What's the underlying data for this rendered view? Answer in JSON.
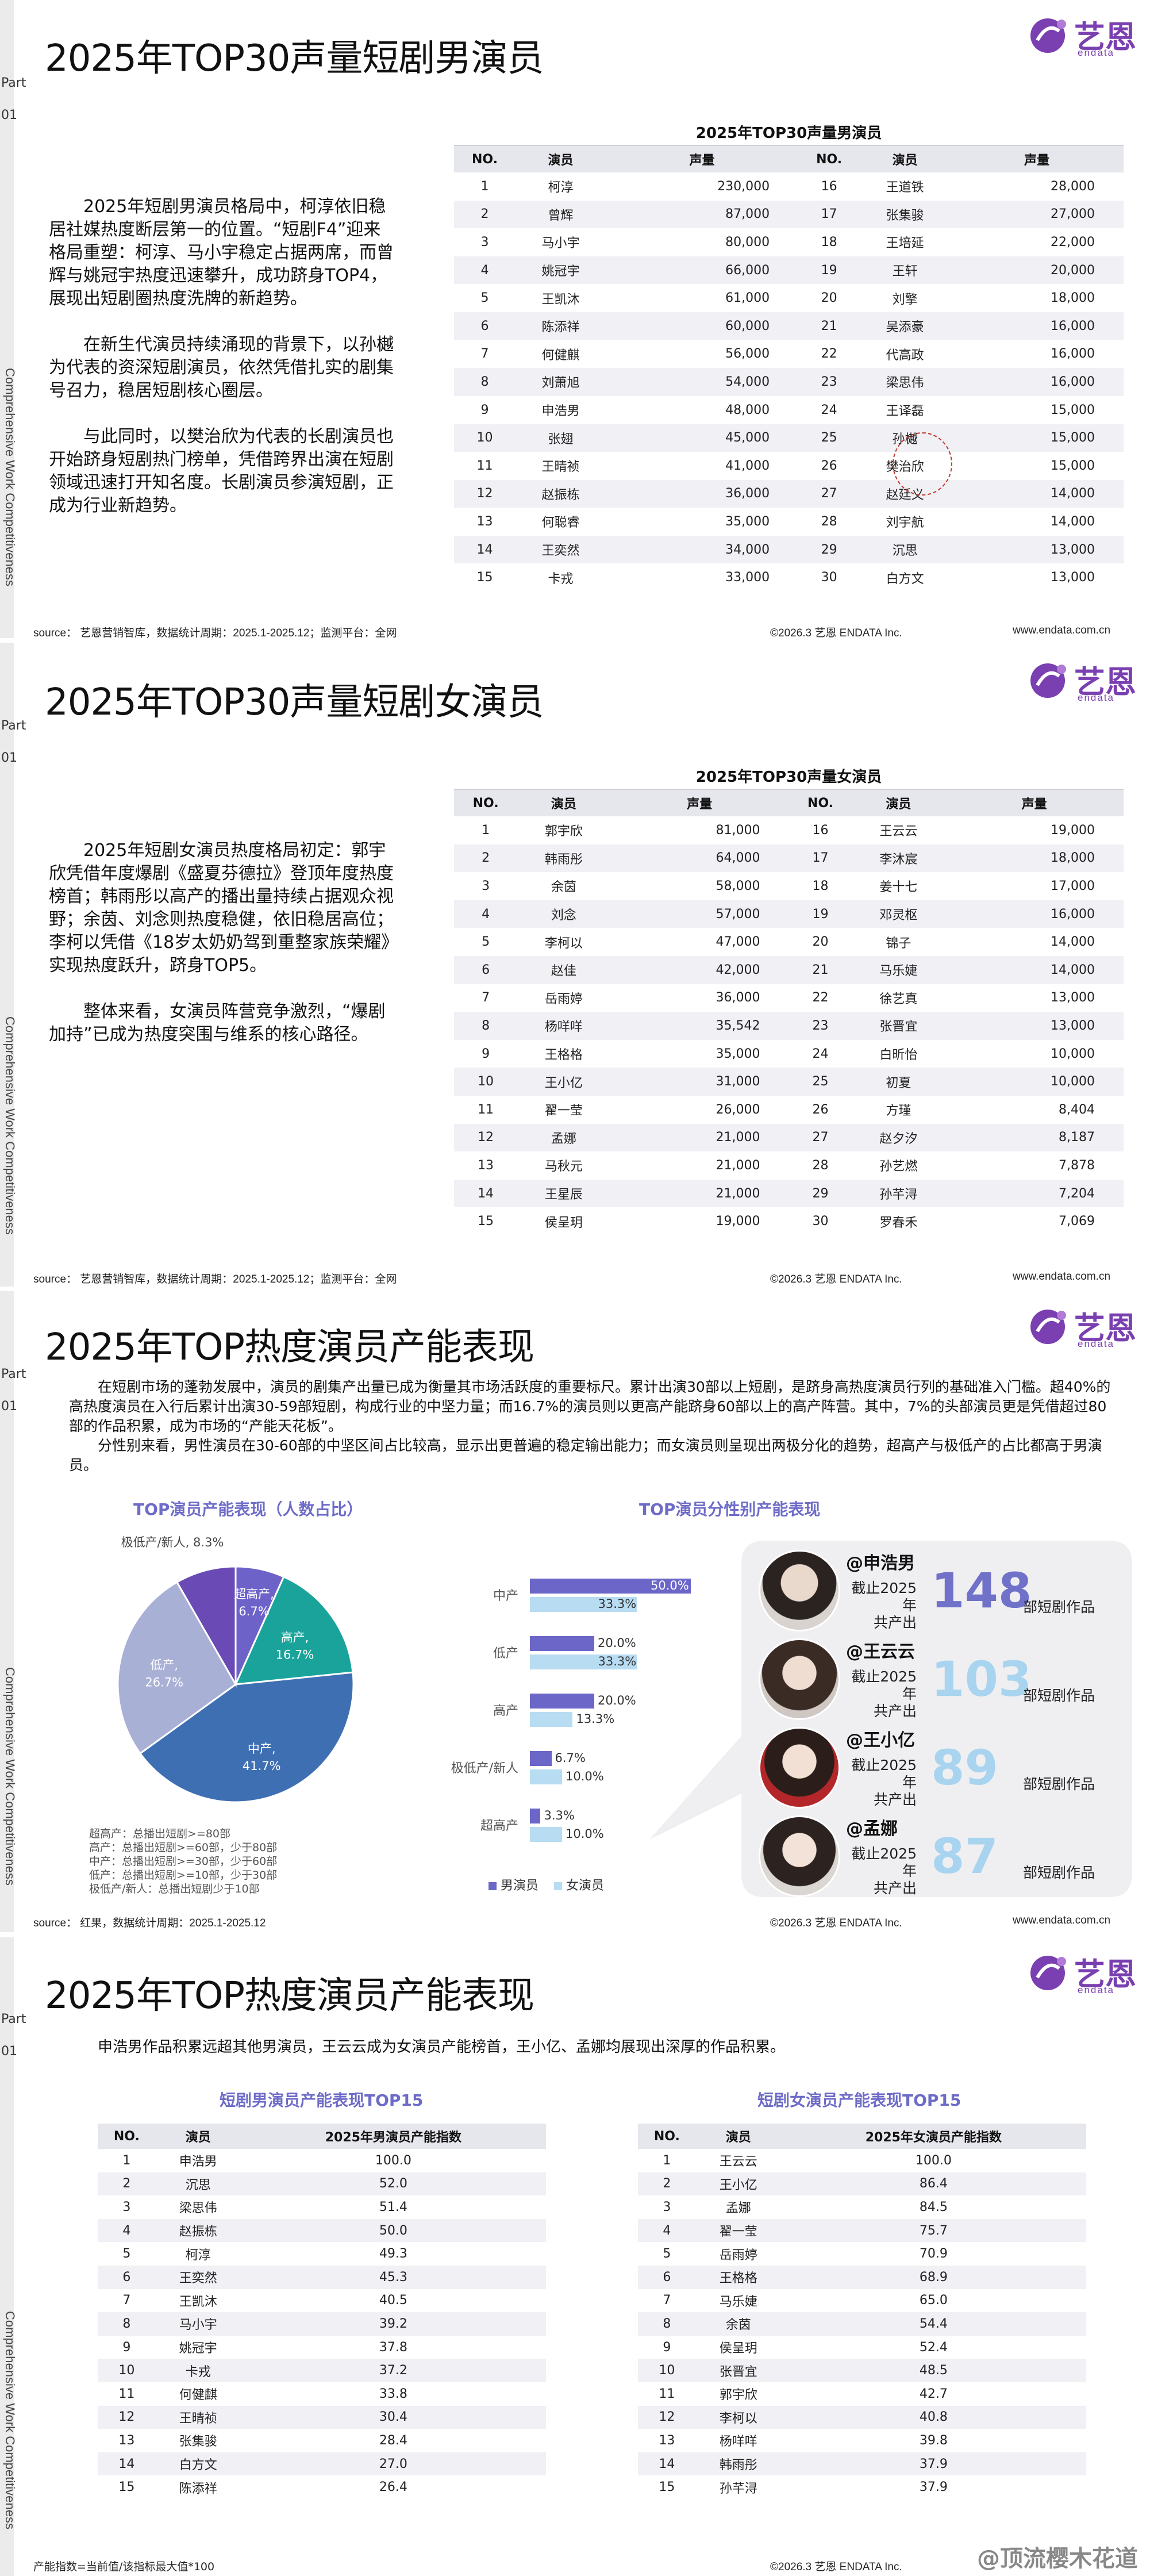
{
  "brand": {
    "logo_cn": "艺恩",
    "logo_en": "endata"
  },
  "side": {
    "part": "Part",
    "num": "01",
    "vertical": "Comprehensive Work Competitiveness"
  },
  "footer": {
    "copyright": "©2026.3  艺恩 ENDATA Inc.",
    "website": "www.endata.com.cn"
  },
  "s1": {
    "title": "2025年TOP30声量短剧男演员",
    "paragraphs": [
      "2025年短剧男演员格局中，柯淳依旧稳居社媒热度断层第一的位置。“短剧F4”迎来格局重塑：柯淳、马小宇稳定占据两席，而曾辉与姚冠宇热度迅速攀升，成功跻身TOP4，展现出短剧圈热度洗牌的新趋势。",
      "在新生代演员持续涌现的背景下，以孙樾为代表的资深短剧演员，依然凭借扎实的剧集号召力，稳居短剧核心圈层。",
      "与此同时，以樊治欣为代表的长剧演员也开始跻身短剧热门榜单，凭借跨界出演在短剧领域迅速打开知名度。长剧演员参演短剧，正成为行业新趋势。"
    ],
    "table_title": "2025年TOP30声量男演员",
    "headers": [
      "NO.",
      "演员",
      "声量",
      "NO.",
      "演员",
      "声量"
    ],
    "rows": [
      [
        "1",
        "柯淳",
        "230,000",
        "16",
        "王道铁",
        "28,000"
      ],
      [
        "2",
        "曾辉",
        "87,000",
        "17",
        "张集骏",
        "27,000"
      ],
      [
        "3",
        "马小宇",
        "80,000",
        "18",
        "王培延",
        "22,000"
      ],
      [
        "4",
        "姚冠宇",
        "66,000",
        "19",
        "王轩",
        "20,000"
      ],
      [
        "5",
        "王凯沐",
        "61,000",
        "20",
        "刘擎",
        "18,000"
      ],
      [
        "6",
        "陈添祥",
        "60,000",
        "21",
        "吴添豪",
        "16,000"
      ],
      [
        "7",
        "何健麒",
        "56,000",
        "22",
        "代高政",
        "16,000"
      ],
      [
        "8",
        "刘萧旭",
        "54,000",
        "23",
        "梁思伟",
        "16,000"
      ],
      [
        "9",
        "申浩男",
        "48,000",
        "24",
        "王译磊",
        "15,000"
      ],
      [
        "10",
        "张翅",
        "45,000",
        "25",
        "孙樾",
        "15,000"
      ],
      [
        "11",
        "王晴祯",
        "41,000",
        "26",
        "樊治欣",
        "15,000"
      ],
      [
        "12",
        "赵振栋",
        "36,000",
        "27",
        "赵廷义",
        "14,000"
      ],
      [
        "13",
        "何聪睿",
        "35,000",
        "28",
        "刘宇航",
        "14,000"
      ],
      [
        "14",
        "王奕然",
        "34,000",
        "29",
        "沉思",
        "13,000"
      ],
      [
        "15",
        "卡戎",
        "33,000",
        "30",
        "白方文",
        "13,000"
      ]
    ],
    "source": "source： 艺恩营销智库，数据统计周期：2025.1-2025.12；监测平台：全网"
  },
  "s2": {
    "title": "2025年TOP30声量短剧女演员",
    "paragraphs": [
      "2025年短剧女演员热度格局初定：郭宇欣凭借年度爆剧《盛夏芬德拉》登顶年度热度榜首；韩雨彤以高产的播出量持续占据观众视野；余茵、刘念则热度稳健，依旧稳居高位；李柯以凭借《18岁太奶奶驾到重整家族荣耀》实现热度跃升，跻身TOP5。",
      "整体来看，女演员阵营竞争激烈，“爆剧加持”已成为热度突围与维系的核心路径。"
    ],
    "table_title": "2025年TOP30声量女演员",
    "headers": [
      "NO.",
      "演员",
      "声量",
      "NO.",
      "演员",
      "声量"
    ],
    "rows": [
      [
        "1",
        "郭宇欣",
        "81,000",
        "16",
        "王云云",
        "19,000"
      ],
      [
        "2",
        "韩雨彤",
        "64,000",
        "17",
        "李沐宸",
        "18,000"
      ],
      [
        "3",
        "余茵",
        "58,000",
        "18",
        "姜十七",
        "17,000"
      ],
      [
        "4",
        "刘念",
        "57,000",
        "19",
        "邓灵枢",
        "16,000"
      ],
      [
        "5",
        "李柯以",
        "47,000",
        "20",
        "锦子",
        "14,000"
      ],
      [
        "6",
        "赵佳",
        "42,000",
        "21",
        "马乐婕",
        "14,000"
      ],
      [
        "7",
        "岳雨婷",
        "36,000",
        "22",
        "徐艺真",
        "13,000"
      ],
      [
        "8",
        "杨咩咩",
        "35,542",
        "23",
        "张晋宜",
        "13,000"
      ],
      [
        "9",
        "王格格",
        "35,000",
        "24",
        "白昕怡",
        "10,000"
      ],
      [
        "10",
        "王小亿",
        "31,000",
        "25",
        "初夏",
        "10,000"
      ],
      [
        "11",
        "翟一莹",
        "26,000",
        "26",
        "方瑾",
        "8,404"
      ],
      [
        "12",
        "孟娜",
        "21,000",
        "27",
        "赵夕汐",
        "8,187"
      ],
      [
        "13",
        "马秋元",
        "21,000",
        "28",
        "孙艺燃",
        "7,878"
      ],
      [
        "14",
        "王星辰",
        "21,000",
        "29",
        "孙芊浔",
        "7,204"
      ],
      [
        "15",
        "侯呈玥",
        "19,000",
        "30",
        "罗春禾",
        "7,069"
      ]
    ],
    "source": "source： 艺恩营销智库，数据统计周期：2025.1-2025.12；监测平台：全网"
  },
  "s3": {
    "title": "2025年TOP热度演员产能表现",
    "paragraphs": [
      "在短剧市场的蓬勃发展中，演员的剧集产出量已成为衡量其市场活跃度的重要标尺。累计出演30部以上短剧，是跻身高热度演员行列的基础准入门槛。超40%的高热度演员在入行后累计出演30-59部短剧，构成行业的中坚力量；而16.7%的演员则以更高产能跻身60部以上的高产阵营。其中，7%的头部演员更是凭借超过80部的作品积累，成为市场的“产能天花板”。",
      "分性别来看，男性演员在30-60部的中坚区间占比较高，显示出更普遍的稳定输出能力；而女演员则呈现出两极分化的趋势，超高产与极低产的占比都高于男演员。"
    ],
    "pie_title": "TOP演员产能表现（人数占比）",
    "bar_title": "TOP演员分性别产能表现",
    "legend_notes": [
      "超高产：总播出短剧>=80部",
      "高产：总播出短剧>=60部，少于80部",
      "中产：总播出短剧>=30部，少于60部",
      "低产：总播出短剧>=10部，少于30部",
      "极低产/新人：总播出短剧少于10部"
    ],
    "bar_legend": [
      "男演员",
      "女演员"
    ],
    "actors": [
      {
        "name": "@申浩男",
        "cap1": "截止2025年",
        "cap2": "共产出",
        "value": "148",
        "unit": "部短剧作品"
      },
      {
        "name": "@王云云",
        "cap1": "截止2025年",
        "cap2": "共产出",
        "value": "103",
        "unit": "部短剧作品"
      },
      {
        "name": "@王小亿",
        "cap1": "截止2025年",
        "cap2": "共产出",
        "value": "89",
        "unit": "部短剧作品"
      },
      {
        "name": "@孟娜",
        "cap1": "截止2025年",
        "cap2": "共产出",
        "value": "87",
        "unit": "部短剧作品"
      }
    ],
    "source": "source： 红果，数据统计周期：2025.1-2025.12"
  },
  "chart_data": [
    {
      "type": "pie",
      "title": "TOP演员产能表现（人数占比）",
      "categories": [
        "超高产",
        "高产",
        "中产",
        "低产",
        "极低产/新人"
      ],
      "values": [
        6.7,
        16.7,
        41.7,
        26.7,
        8.3
      ],
      "labels": [
        "超高产,\n6.7%",
        "高产,\n16.7%",
        "中产,\n41.7%",
        "低产,\n26.7%",
        "极低产/新人, 8.3%"
      ],
      "colors": [
        "#6d62c8",
        "#1aa39a",
        "#3f6fb3",
        "#a9b0d6",
        "#6a4bb5"
      ]
    },
    {
      "type": "bar",
      "title": "TOP演员分性别产能表现",
      "categories": [
        "中产",
        "低产",
        "高产",
        "极低产/新人",
        "超高产"
      ],
      "series": [
        {
          "name": "男演员",
          "values": [
            50.0,
            20.0,
            20.0,
            6.7,
            3.3
          ],
          "labels": [
            "50.0%",
            "20.0%",
            "20.0%",
            "6.7%",
            "3.3%"
          ],
          "color": "#6b66c8"
        },
        {
          "name": "女演员",
          "values": [
            33.3,
            33.3,
            13.3,
            10.0,
            10.0
          ],
          "labels": [
            "33.3%",
            "33.3%",
            "13.3%",
            "10.0%",
            "10.0%"
          ],
          "color": "#b8dcf2"
        }
      ],
      "xlim": [
        0,
        50
      ]
    }
  ],
  "s4": {
    "title": "2025年TOP热度演员产能表现",
    "intro": "申浩男作品积累远超其他男演员，王云云成为女演员产能榜首，王小亿、孟娜均展现出深厚的作品积累。",
    "male_title": "短剧男演员产能表现TOP15",
    "female_title": "短剧女演员产能表现TOP15",
    "male_headers": [
      "NO.",
      "演员",
      "2025年男演员产能指数"
    ],
    "female_headers": [
      "NO.",
      "演员",
      "2025年女演员产能指数"
    ],
    "male_rows": [
      [
        "1",
        "申浩男",
        "100.0"
      ],
      [
        "2",
        "沉思",
        "52.0"
      ],
      [
        "3",
        "梁思伟",
        "51.4"
      ],
      [
        "4",
        "赵振栋",
        "50.0"
      ],
      [
        "5",
        "柯淳",
        "49.3"
      ],
      [
        "6",
        "王奕然",
        "45.3"
      ],
      [
        "7",
        "王凯沐",
        "40.5"
      ],
      [
        "8",
        "马小宇",
        "39.2"
      ],
      [
        "9",
        "姚冠宇",
        "37.8"
      ],
      [
        "10",
        "卡戎",
        "37.2"
      ],
      [
        "11",
        "何健麒",
        "33.8"
      ],
      [
        "12",
        "王晴祯",
        "30.4"
      ],
      [
        "13",
        "张集骏",
        "28.4"
      ],
      [
        "14",
        "白方文",
        "27.0"
      ],
      [
        "15",
        "陈添祥",
        "26.4"
      ]
    ],
    "female_rows": [
      [
        "1",
        "王云云",
        "100.0"
      ],
      [
        "2",
        "王小亿",
        "86.4"
      ],
      [
        "3",
        "孟娜",
        "84.5"
      ],
      [
        "4",
        "翟一莹",
        "75.7"
      ],
      [
        "5",
        "岳雨婷",
        "70.9"
      ],
      [
        "6",
        "王格格",
        "68.9"
      ],
      [
        "7",
        "马乐婕",
        "65.0"
      ],
      [
        "8",
        "余茵",
        "54.4"
      ],
      [
        "9",
        "侯呈玥",
        "52.4"
      ],
      [
        "10",
        "张晋宜",
        "48.5"
      ],
      [
        "11",
        "郭宇欣",
        "42.7"
      ],
      [
        "12",
        "李柯以",
        "40.8"
      ],
      [
        "13",
        "杨咩咩",
        "39.8"
      ],
      [
        "14",
        "韩雨彤",
        "37.9"
      ],
      [
        "15",
        "孙芊浔",
        "37.9"
      ]
    ],
    "footnote": "产能指数=当前值/该指标最大值*100",
    "watermark": "@顶流樱木花道"
  }
}
